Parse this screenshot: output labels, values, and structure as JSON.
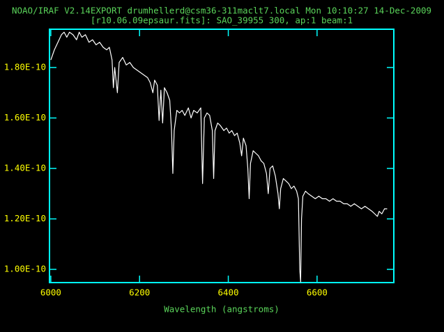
{
  "chart_data": {
    "type": "line",
    "title": "NOAO/IRAF V2.14EXPORT drumhellerd@csm36-311maclt7.local Mon 10:10:27 14-Dec-2009",
    "subtitle": "[r10.06.09epsaur.fits]: SAO_39955 300, ap:1 beam:1",
    "x_label": "Wavelength (angstroms)",
    "xlim": [
      5997,
      6773
    ],
    "xticks": [
      6000,
      6200,
      6400,
      6600
    ],
    "ylim": [
      9.476e-11,
      1.9517e-10
    ],
    "yticks": [
      {
        "value": 1e-10,
        "label": "1.00E-10"
      },
      {
        "value": 1.2e-10,
        "label": "1.20E-10"
      },
      {
        "value": 1.4e-10,
        "label": "1.40E-10"
      },
      {
        "value": 1.6e-10,
        "label": "1.60E-10"
      },
      {
        "value": 1.8e-10,
        "label": "1.80E-10"
      }
    ],
    "x": [
      6000,
      6008,
      6016,
      6024,
      6030,
      6036,
      6042,
      6050,
      6058,
      6064,
      6070,
      6078,
      6086,
      6094,
      6102,
      6110,
      6118,
      6126,
      6132,
      6138,
      6141,
      6144,
      6150,
      6154,
      6162,
      6170,
      6178,
      6186,
      6194,
      6202,
      6210,
      6218,
      6224,
      6230,
      6234,
      6240,
      6244,
      6248,
      6252,
      6256,
      6262,
      6268,
      6272,
      6275,
      6278,
      6284,
      6290,
      6296,
      6302,
      6310,
      6316,
      6322,
      6330,
      6338,
      6342,
      6346,
      6352,
      6358,
      6364,
      6367,
      6370,
      6376,
      6382,
      6390,
      6396,
      6402,
      6408,
      6414,
      6420,
      6426,
      6430,
      6434,
      6440,
      6444,
      6447,
      6450,
      6456,
      6462,
      6468,
      6474,
      6480,
      6486,
      6490,
      6494,
      6500,
      6506,
      6512,
      6515,
      6518,
      6524,
      6530,
      6536,
      6542,
      6548,
      6554,
      6558,
      6561,
      6563,
      6565,
      6568,
      6574,
      6580,
      6588,
      6596,
      6604,
      6612,
      6620,
      6628,
      6636,
      6644,
      6652,
      6660,
      6668,
      6676,
      6684,
      6692,
      6700,
      6708,
      6716,
      6724,
      6730,
      6736,
      6740,
      6746,
      6752,
      6758
    ],
    "series": [
      {
        "color": "#ffffff",
        "values": [
          1.83e-10,
          1.87e-10,
          1.9e-10,
          1.93e-10,
          1.94e-10,
          1.92e-10,
          1.94e-10,
          1.93e-10,
          1.91e-10,
          1.94e-10,
          1.92e-10,
          1.93e-10,
          1.9e-10,
          1.91e-10,
          1.89e-10,
          1.9e-10,
          1.88e-10,
          1.87e-10,
          1.88e-10,
          1.83e-10,
          1.72e-10,
          1.8e-10,
          1.7e-10,
          1.82e-10,
          1.84e-10,
          1.81e-10,
          1.82e-10,
          1.8e-10,
          1.79e-10,
          1.78e-10,
          1.77e-10,
          1.76e-10,
          1.74e-10,
          1.7e-10,
          1.75e-10,
          1.73e-10,
          1.59e-10,
          1.71e-10,
          1.58e-10,
          1.72e-10,
          1.7e-10,
          1.67e-10,
          1.55e-10,
          1.38e-10,
          1.55e-10,
          1.63e-10,
          1.62e-10,
          1.63e-10,
          1.61e-10,
          1.64e-10,
          1.6e-10,
          1.63e-10,
          1.62e-10,
          1.64e-10,
          1.34e-10,
          1.6e-10,
          1.62e-10,
          1.61e-10,
          1.55e-10,
          1.36e-10,
          1.55e-10,
          1.58e-10,
          1.57e-10,
          1.55e-10,
          1.56e-10,
          1.54e-10,
          1.55e-10,
          1.53e-10,
          1.54e-10,
          1.5e-10,
          1.45e-10,
          1.52e-10,
          1.49e-10,
          1.4e-10,
          1.28e-10,
          1.42e-10,
          1.47e-10,
          1.46e-10,
          1.45e-10,
          1.43e-10,
          1.42e-10,
          1.38e-10,
          1.3e-10,
          1.4e-10,
          1.41e-10,
          1.37e-10,
          1.3e-10,
          1.24e-10,
          1.32e-10,
          1.36e-10,
          1.35e-10,
          1.34e-10,
          1.32e-10,
          1.33e-10,
          1.31e-10,
          1.28e-10,
          1e-10,
          9.5e-11,
          1.2e-10,
          1.29e-10,
          1.31e-10,
          1.3e-10,
          1.29e-10,
          1.28e-10,
          1.29e-10,
          1.28e-10,
          1.28e-10,
          1.27e-10,
          1.28e-10,
          1.27e-10,
          1.27e-10,
          1.26e-10,
          1.26e-10,
          1.25e-10,
          1.26e-10,
          1.25e-10,
          1.24e-10,
          1.25e-10,
          1.24e-10,
          1.23e-10,
          1.22e-10,
          1.21e-10,
          1.23e-10,
          1.22e-10,
          1.24e-10,
          1.24e-10
        ]
      }
    ]
  }
}
